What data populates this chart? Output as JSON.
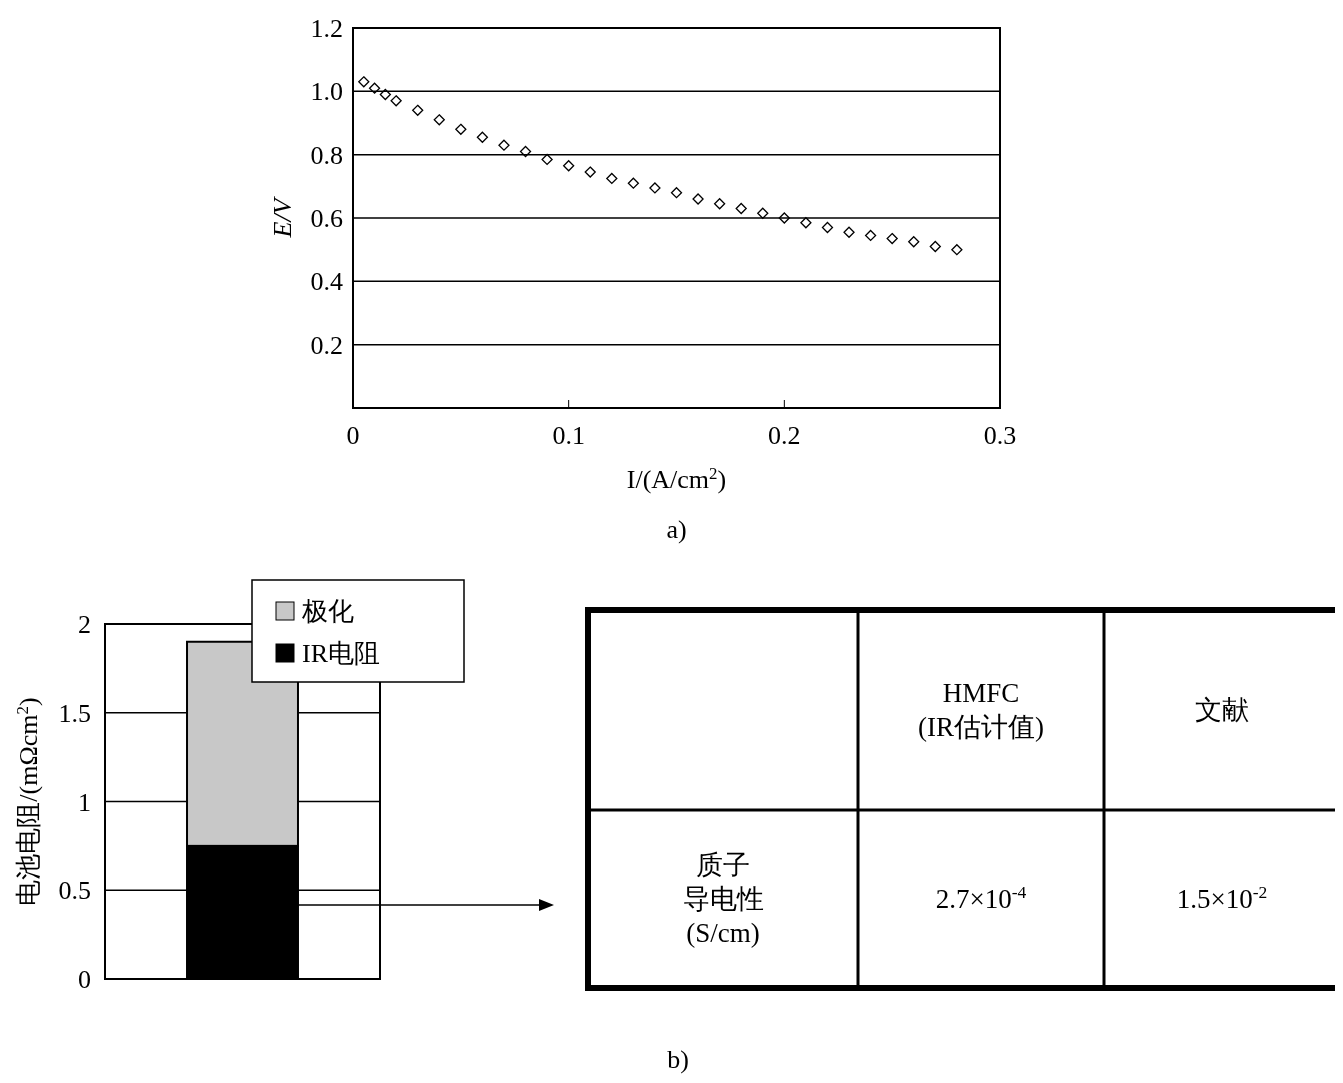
{
  "chart_data": [
    {
      "type": "scatter",
      "xlabel": "I/(A/cm$^{2}$)",
      "ylabel": "E/V",
      "annotations": [
        "a)"
      ],
      "xlim": [
        0,
        0.3
      ],
      "ylim": [
        0,
        1.2
      ],
      "xticks": [
        0,
        0.1,
        0.2,
        0.3
      ],
      "yticks": [
        0.2,
        0.4,
        0.6,
        0.8,
        {
          "value": 1,
          "label": "1.0"
        },
        1.2
      ],
      "grid": "y",
      "marker": "diamond",
      "series": [
        {
          "color": "#000000",
          "x": [
            0.005,
            0.01,
            0.015,
            0.02,
            0.03,
            0.04,
            0.05,
            0.06,
            0.07,
            0.08,
            0.09,
            0.1,
            0.11,
            0.12,
            0.13,
            0.14,
            0.15,
            0.16,
            0.17,
            0.18,
            0.19,
            0.2,
            0.21,
            0.22,
            0.23,
            0.24,
            0.25,
            0.26,
            0.27,
            0.28
          ],
          "values": [
            1.03,
            1.01,
            0.99,
            0.97,
            0.94,
            0.91,
            0.88,
            0.855,
            0.83,
            0.81,
            0.785,
            0.765,
            0.745,
            0.725,
            0.71,
            0.695,
            0.68,
            0.66,
            0.645,
            0.63,
            0.615,
            0.6,
            0.585,
            0.57,
            0.555,
            0.545,
            0.535,
            0.525,
            0.51,
            0.5
          ]
        }
      ]
    },
    {
      "type": "bar",
      "stacked": true,
      "categories": [
        null
      ],
      "ylabel": "电池电阻/(mΩcm$^{2}$)",
      "annotations": [
        "b)"
      ],
      "ylim": [
        0,
        2
      ],
      "yticks": [
        0,
        0.5,
        1,
        1.5,
        2
      ],
      "grid": "y",
      "legend": "top right",
      "series": [
        {
          "name": "IR电阻",
          "color": "#000000",
          "values": [
            0.75
          ]
        },
        {
          "name": "极化",
          "color": "#c8c8c8",
          "values": [
            1.15
          ]
        }
      ]
    },
    {
      "type": "other",
      "categories": [
        "HMFC\n(IR估计值)",
        "文献"
      ],
      "y_categories": [
        "质子导电性\n(S/cm)"
      ],
      "cell_labels": [
        [
          "2.7×10$^{-4}$",
          "1.5×10$^{-2}$"
        ]
      ]
    }
  ]
}
